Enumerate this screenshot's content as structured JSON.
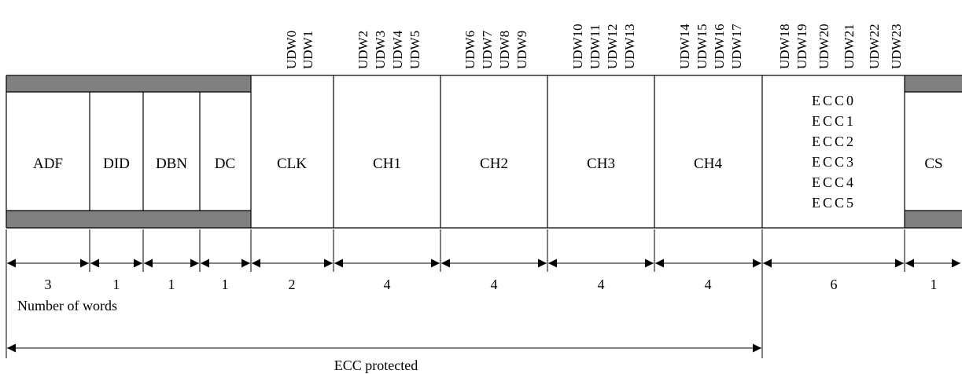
{
  "colors": {
    "band": "#808080",
    "line": "#000000",
    "background": "#ffffff"
  },
  "header_fields": [
    {
      "label": "ADF",
      "words": "3"
    },
    {
      "label": "DID",
      "words": "1"
    },
    {
      "label": "DBN",
      "words": "1"
    },
    {
      "label": "DC",
      "words": "1"
    }
  ],
  "data_fields": [
    {
      "label": "CLK",
      "words": "2",
      "udw": [
        "UDW0",
        "UDW1"
      ]
    },
    {
      "label": "CH1",
      "words": "4",
      "udw": [
        "UDW2",
        "UDW3",
        "UDW4",
        "UDW5"
      ]
    },
    {
      "label": "CH2",
      "words": "4",
      "udw": [
        "UDW6",
        "UDW7",
        "UDW8",
        "UDW9"
      ]
    },
    {
      "label": "CH3",
      "words": "4",
      "udw": [
        "UDW10",
        "UDW11",
        "UDW12",
        "UDW13"
      ]
    },
    {
      "label": "CH4",
      "words": "4",
      "udw": [
        "UDW14",
        "UDW15",
        "UDW16",
        "UDW17"
      ]
    }
  ],
  "ecc_field": {
    "words": "6",
    "udw": [
      "UDW18",
      "UDW19",
      "UDW20",
      "UDW21",
      "UDW22",
      "UDW23"
    ],
    "lines": [
      "ECC0",
      "ECC1",
      "ECC2",
      "ECC3",
      "ECC4",
      "ECC5"
    ]
  },
  "checksum_field": {
    "label": "CS",
    "words": "1"
  },
  "number_of_words_label": "Number of words",
  "ecc_protected_label": "ECC protected"
}
